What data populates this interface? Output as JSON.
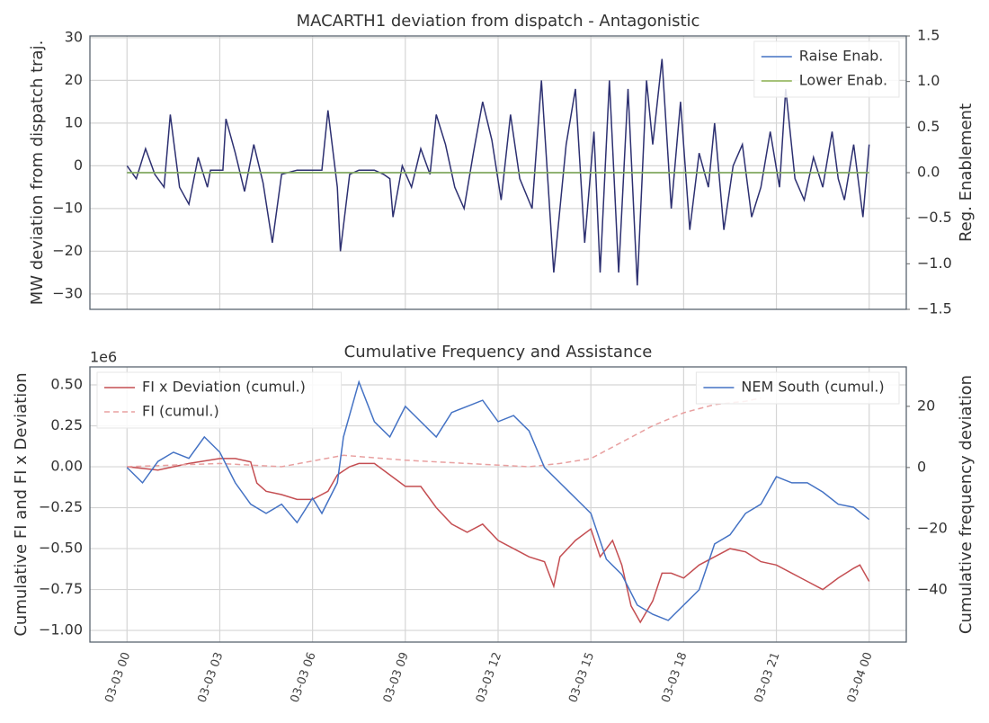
{
  "chart_data": [
    {
      "type": "line",
      "title": "MACARTH1 deviation from dispatch - Antagonistic",
      "ylabel": "MW deviation from dispatch traj.",
      "y2label": "Reg. Enablement",
      "xlim": [
        -1.2,
        25.2
      ],
      "xticks": [
        0,
        3,
        6,
        9,
        12,
        15,
        18,
        21,
        24
      ],
      "ylim": [
        -33.6,
        30.4
      ],
      "yticks": [
        {
          "value": -30,
          "label": "−30"
        },
        {
          "value": -20,
          "label": "−20"
        },
        {
          "value": -10,
          "label": "−10"
        },
        0,
        10,
        20,
        30
      ],
      "y2lim": [
        -1.5,
        1.5
      ],
      "y2ticks": [
        {
          "value": -1.5,
          "label": "−1.5"
        },
        {
          "value": -1.0,
          "label": "−1.0"
        },
        {
          "value": -0.5,
          "label": "−0.5"
        },
        {
          "value": 0,
          "label": "0.0"
        },
        {
          "value": 0.5,
          "label": "0.5"
        },
        {
          "value": 1.0,
          "label": "1.0"
        },
        {
          "value": 1.5,
          "label": "1.5"
        }
      ],
      "grid": true,
      "legend": "upper right",
      "series": [
        {
          "color": "#2d3071",
          "x": [
            0,
            0.3,
            0.6,
            0.9,
            1.2,
            1.4,
            1.7,
            2,
            2.3,
            2.6,
            2.7,
            3.1,
            3.2,
            3.5,
            3.8,
            4.1,
            4.4,
            4.7,
            5,
            5.5,
            6,
            6.3,
            6.5,
            6.8,
            6.9,
            7.2,
            7.5,
            8,
            8.3,
            8.5,
            8.6,
            8.9,
            9.2,
            9.5,
            9.8,
            10,
            10.3,
            10.6,
            10.9,
            11.2,
            11.5,
            11.8,
            12.1,
            12.4,
            12.7,
            13.1,
            13.4,
            13.8,
            14.2,
            14.5,
            14.8,
            15.1,
            15.3,
            15.6,
            15.9,
            16.2,
            16.5,
            16.8,
            17,
            17.3,
            17.6,
            17.9,
            18.2,
            18.5,
            18.8,
            19,
            19.3,
            19.6,
            19.9,
            20.2,
            20.5,
            20.8,
            21.1,
            21.3,
            21.6,
            21.9,
            22.2,
            22.5,
            22.8,
            23,
            23.2,
            23.5,
            23.8,
            24
          ],
          "values": [
            0,
            -3,
            4,
            -2,
            -5,
            12,
            -5,
            -9,
            2,
            -5,
            -1,
            -1,
            11,
            3,
            -6,
            5,
            -4,
            -18,
            -2,
            -1,
            -1,
            -1,
            13,
            -5,
            -20,
            -2,
            -1,
            -1,
            -2,
            -3,
            -12,
            0,
            -5,
            4,
            -2,
            12,
            5,
            -5,
            -10,
            3,
            15,
            6,
            -8,
            12,
            -3,
            -10,
            20,
            -25,
            5,
            18,
            -18,
            8,
            -25,
            20,
            -25,
            18,
            -28,
            20,
            5,
            25,
            -10,
            15,
            -15,
            3,
            -5,
            10,
            -15,
            0,
            5,
            -12,
            -5,
            8,
            -5,
            18,
            -3,
            -8,
            2,
            -5,
            8,
            -3,
            -8,
            5,
            -12,
            5
          ]
        },
        {
          "name": "Raise Enab.",
          "color": "#4472c4",
          "axis": "y2",
          "x": [
            0,
            24
          ],
          "values": [
            0,
            0
          ]
        },
        {
          "name": "Lower Enab.",
          "color": "#8ab04f",
          "axis": "y2",
          "x": [
            0,
            24
          ],
          "values": [
            0,
            0
          ]
        }
      ]
    },
    {
      "type": "line",
      "title": "Cumulative Frequency and Assistance",
      "ylabel": "Cumulative FI and FI x Deviation",
      "y2label": "Cumulative frequency deviation",
      "y_offset_label": "1e6",
      "xlim": [
        -1.2,
        25.2
      ],
      "xticks": [
        {
          "value": 0,
          "label": "03-03 00"
        },
        {
          "value": 3,
          "label": "03-03 03"
        },
        {
          "value": 6,
          "label": "03-03 06"
        },
        {
          "value": 9,
          "label": "03-03 09"
        },
        {
          "value": 12,
          "label": "03-03 12"
        },
        {
          "value": 15,
          "label": "03-03 15"
        },
        {
          "value": 18,
          "label": "03-03 18"
        },
        {
          "value": 21,
          "label": "03-03 21"
        },
        {
          "value": 24,
          "label": "03-04 00"
        }
      ],
      "ylim": [
        -1.071,
        0.61
      ],
      "yticks": [
        {
          "value": -1.0,
          "label": "−1.00"
        },
        {
          "value": -0.75,
          "label": "−0.75"
        },
        {
          "value": -0.5,
          "label": "−0.50"
        },
        {
          "value": -0.25,
          "label": "−0.25"
        },
        {
          "value": 0,
          "label": "0.00"
        },
        {
          "value": 0.25,
          "label": "0.25"
        },
        {
          "value": 0.5,
          "label": "0.50"
        }
      ],
      "y2lim": [
        -57.1,
        32.9
      ],
      "y2ticks": [
        {
          "value": -40,
          "label": "−40"
        },
        {
          "value": -20,
          "label": "−20"
        },
        0,
        20
      ],
      "grid": true,
      "legend": "upper left",
      "legend2": "upper right",
      "series": [
        {
          "name": "FI x Deviation (cumul.)",
          "color": "#c44e52",
          "x": [
            0,
            1,
            2,
            3,
            3.5,
            4,
            4.2,
            4.5,
            5,
            5.5,
            6,
            6.5,
            6.8,
            7.2,
            7.5,
            8,
            8.5,
            9,
            9.5,
            10,
            10.5,
            11,
            11.5,
            12,
            12.5,
            13,
            13.5,
            13.8,
            14,
            14.5,
            15,
            15.3,
            15.7,
            16,
            16.3,
            16.6,
            17,
            17.3,
            17.6,
            18,
            18.5,
            19,
            19.5,
            20,
            20.5,
            21,
            21.5,
            22,
            22.5,
            23,
            23.5,
            23.7,
            24
          ],
          "values": [
            0,
            -0.02,
            0.02,
            0.05,
            0.05,
            0.03,
            -0.1,
            -0.15,
            -0.17,
            -0.2,
            -0.2,
            -0.15,
            -0.05,
            0,
            0.02,
            0.02,
            -0.05,
            -0.12,
            -0.12,
            -0.25,
            -0.35,
            -0.4,
            -0.35,
            -0.45,
            -0.5,
            -0.55,
            -0.58,
            -0.73,
            -0.55,
            -0.45,
            -0.38,
            -0.55,
            -0.45,
            -0.6,
            -0.85,
            -0.95,
            -0.82,
            -0.65,
            -0.65,
            -0.68,
            -0.6,
            -0.55,
            -0.5,
            -0.52,
            -0.58,
            -0.6,
            -0.65,
            -0.7,
            -0.75,
            -0.68,
            -0.62,
            -0.6,
            -0.7
          ]
        },
        {
          "name": "FI (cumul.)",
          "color": "#e8a0a0",
          "dash": true,
          "x": [
            0,
            3,
            5,
            7,
            9,
            11,
            13,
            14,
            15,
            16,
            17,
            18,
            19,
            20,
            20.5
          ],
          "values": [
            0,
            0.02,
            0,
            0.07,
            0.04,
            0.02,
            0,
            0.02,
            0.05,
            0.15,
            0.25,
            0.33,
            0.38,
            0.4,
            0.42
          ]
        },
        {
          "name": "NEM South (cumul.)",
          "color": "#4472c4",
          "axis": "y2",
          "x": [
            0,
            0.5,
            1,
            1.5,
            2,
            2.5,
            3,
            3.5,
            4,
            4.5,
            5,
            5.5,
            6,
            6.3,
            6.8,
            7,
            7.5,
            8,
            8.5,
            9,
            9.5,
            10,
            10.5,
            11,
            11.5,
            12,
            12.5,
            13,
            13.5,
            14,
            14.5,
            15,
            15.5,
            16,
            16.5,
            17,
            17.5,
            18,
            18.5,
            19,
            19.5,
            20,
            20.5,
            21,
            21.5,
            22,
            22.5,
            23,
            23.5,
            24
          ],
          "values": [
            0,
            -5,
            2,
            5,
            3,
            10,
            5,
            -5,
            -12,
            -15,
            -12,
            -18,
            -10,
            -15,
            -5,
            10,
            28,
            15,
            10,
            20,
            15,
            10,
            18,
            20,
            22,
            15,
            17,
            12,
            0,
            -5,
            -10,
            -15,
            -30,
            -35,
            -45,
            -48,
            -50,
            -45,
            -40,
            -25,
            -22,
            -15,
            -12,
            -3,
            -5,
            -5,
            -8,
            -12,
            -13,
            -17
          ]
        }
      ]
    }
  ]
}
